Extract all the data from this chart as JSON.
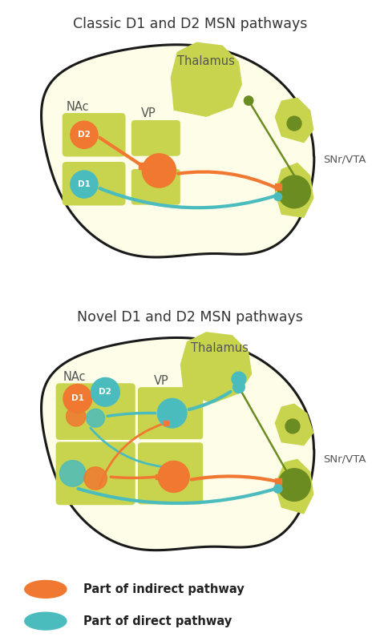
{
  "bg_color": "#fdfde8",
  "brain_edge_color": "#1a1a1a",
  "region_color": "#c8d44e",
  "snr_color": "#6b8c20",
  "snr_dark": "#4a6b10",
  "orange_color": "#f07830",
  "teal_color": "#4bbcbe",
  "title1": "Classic D1 and D2 MSN pathways",
  "title2": "Novel D1 and D2 MSN pathways",
  "legend_orange": "Part of indirect pathway",
  "legend_teal": "Part of direct pathway",
  "title_fontsize": 12.5,
  "label_fontsize": 10.5
}
